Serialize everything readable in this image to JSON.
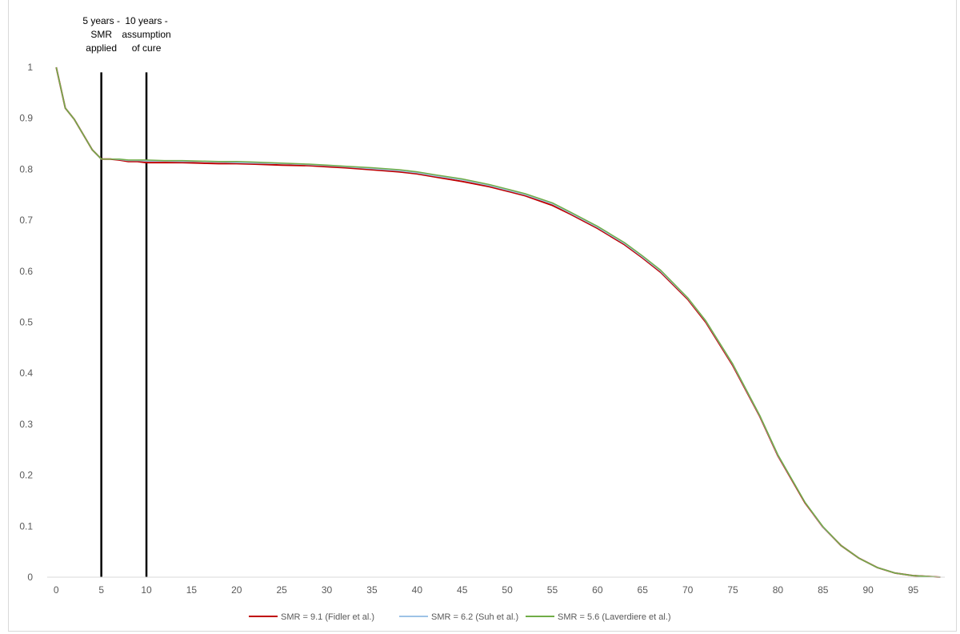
{
  "chart_data": {
    "type": "line",
    "title": "",
    "xlabel": "",
    "ylabel": "",
    "xlim": [
      -1,
      98.5
    ],
    "ylim": [
      0,
      1
    ],
    "x_ticks": [
      0,
      5,
      10,
      15,
      20,
      25,
      30,
      35,
      40,
      45,
      50,
      55,
      60,
      65,
      70,
      75,
      80,
      85,
      90,
      95
    ],
    "y_ticks": [
      0,
      0.1,
      0.2,
      0.3,
      0.4,
      0.5,
      0.6,
      0.7,
      0.8,
      0.9,
      1
    ],
    "y_tick_labels": [
      "0",
      "0.1",
      "0.2",
      "0.3",
      "0.4",
      "0.5",
      "0.6",
      "0.7",
      "0.8",
      "0.9",
      "1"
    ],
    "grid": false,
    "legend_position": "bottom",
    "x": [
      0,
      1,
      2,
      3,
      4,
      5,
      6,
      7,
      8,
      9,
      10,
      12,
      14,
      16,
      18,
      20,
      22,
      25,
      28,
      30,
      32,
      35,
      38,
      40,
      42,
      45,
      48,
      50,
      52,
      55,
      57,
      60,
      63,
      65,
      67,
      70,
      72,
      75,
      78,
      80,
      83,
      85,
      87,
      89,
      91,
      93,
      95,
      97,
      98
    ],
    "series": [
      {
        "name": "SMR = 9.1 (Fidler et al.)",
        "color": "#c00000",
        "values": [
          1,
          0.92,
          0.898,
          0.868,
          0.838,
          0.82,
          0.82,
          0.818,
          0.815,
          0.815,
          0.813,
          0.813,
          0.813,
          0.812,
          0.811,
          0.811,
          0.81,
          0.808,
          0.807,
          0.805,
          0.803,
          0.799,
          0.795,
          0.791,
          0.785,
          0.776,
          0.766,
          0.757,
          0.748,
          0.729,
          0.712,
          0.684,
          0.652,
          0.626,
          0.598,
          0.545,
          0.5,
          0.415,
          0.315,
          0.238,
          0.146,
          0.098,
          0.062,
          0.037,
          0.019,
          0.008,
          0.003,
          0.001,
          0.0
        ]
      },
      {
        "name": "SMR = 6.2 (Suh et al.)",
        "color": "#9dc3e6",
        "values": [
          1,
          0.92,
          0.898,
          0.868,
          0.838,
          0.82,
          0.82,
          0.819,
          0.817,
          0.817,
          0.816,
          0.816,
          0.815,
          0.815,
          0.814,
          0.813,
          0.812,
          0.811,
          0.809,
          0.807,
          0.805,
          0.801,
          0.797,
          0.793,
          0.787,
          0.779,
          0.768,
          0.759,
          0.75,
          0.732,
          0.714,
          0.686,
          0.654,
          0.628,
          0.6,
          0.547,
          0.502,
          0.417,
          0.316,
          0.239,
          0.147,
          0.098,
          0.062,
          0.037,
          0.019,
          0.008,
          0.003,
          0.001,
          0.0
        ]
      },
      {
        "name": "SMR = 5.6 (Laverdiere et al.)",
        "color": "#70ad47",
        "values": [
          1,
          0.92,
          0.898,
          0.868,
          0.838,
          0.82,
          0.82,
          0.82,
          0.818,
          0.818,
          0.818,
          0.817,
          0.817,
          0.816,
          0.815,
          0.815,
          0.814,
          0.812,
          0.81,
          0.808,
          0.806,
          0.803,
          0.799,
          0.795,
          0.789,
          0.781,
          0.77,
          0.761,
          0.752,
          0.734,
          0.716,
          0.688,
          0.656,
          0.63,
          0.602,
          0.548,
          0.503,
          0.418,
          0.317,
          0.24,
          0.147,
          0.099,
          0.062,
          0.037,
          0.019,
          0.008,
          0.003,
          0.001,
          0.0
        ]
      }
    ],
    "annotations": [
      {
        "x": 5,
        "lines": [
          "5 years -",
          "SMR",
          "applied"
        ]
      },
      {
        "x": 10,
        "lines": [
          "10 years -",
          "assumption",
          "of cure"
        ]
      }
    ]
  }
}
